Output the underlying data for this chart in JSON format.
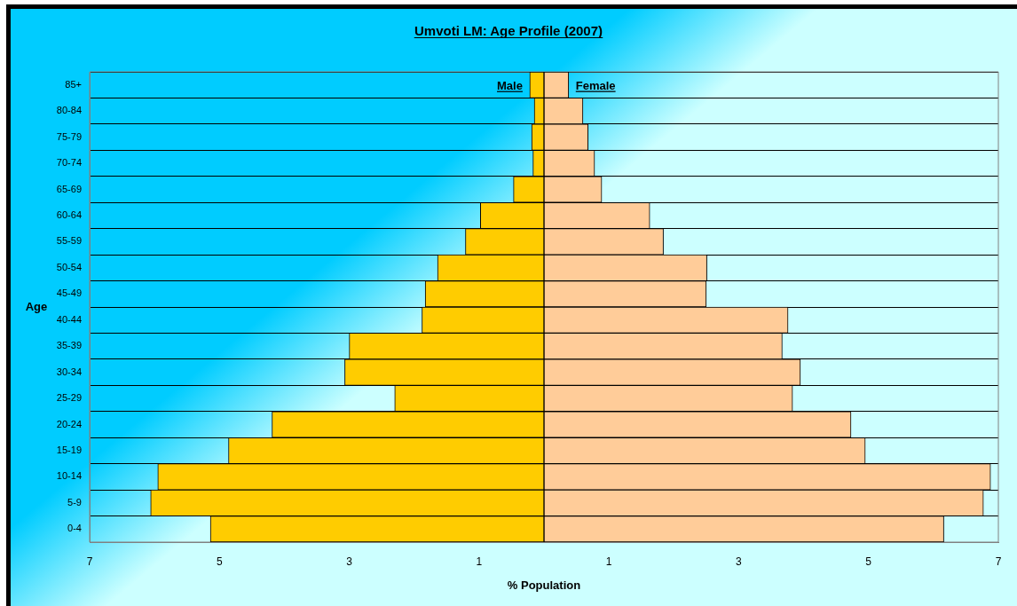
{
  "chart_data": {
    "type": "bar",
    "orientation": "horizontal",
    "stacked": true,
    "title": "Umvoti LM: Age Profile (2007)",
    "xlabel": "% Population",
    "ylabel": "Age",
    "categories": [
      "85+",
      "80-84",
      "75-79",
      "70-74",
      "65-69",
      "60-64",
      "55-59",
      "50-54",
      "45-49",
      "40-44",
      "35-39",
      "30-34",
      "25-29",
      "20-24",
      "15-19",
      "10-14",
      "5-9",
      "0-4"
    ],
    "series": [
      {
        "name": "Male",
        "color": "#ffcc00",
        "values": [
          -0.22,
          -0.15,
          -0.19,
          -0.17,
          -0.47,
          -0.98,
          -1.21,
          -1.64,
          -1.83,
          -1.88,
          -3.0,
          -3.07,
          -2.3,
          -4.19,
          -4.86,
          -5.95,
          -6.06,
          -5.14
        ]
      },
      {
        "name": "Female",
        "color": "#ffcc99",
        "values": [
          0.38,
          0.6,
          0.68,
          0.78,
          0.89,
          1.63,
          1.84,
          2.51,
          2.5,
          3.76,
          3.67,
          3.95,
          3.83,
          4.73,
          4.95,
          6.88,
          6.77,
          6.16
        ]
      }
    ],
    "xlim": [
      -7,
      7
    ],
    "xticks": [
      {
        "value": -7,
        "label": "7"
      },
      {
        "value": -5,
        "label": "5"
      },
      {
        "value": -3,
        "label": "3"
      },
      {
        "value": -1,
        "label": "1"
      },
      {
        "value": 1,
        "label": "1"
      },
      {
        "value": 3,
        "label": "3"
      },
      {
        "value": 5,
        "label": "5"
      },
      {
        "value": 7,
        "label": "7"
      }
    ],
    "grid": "y"
  }
}
